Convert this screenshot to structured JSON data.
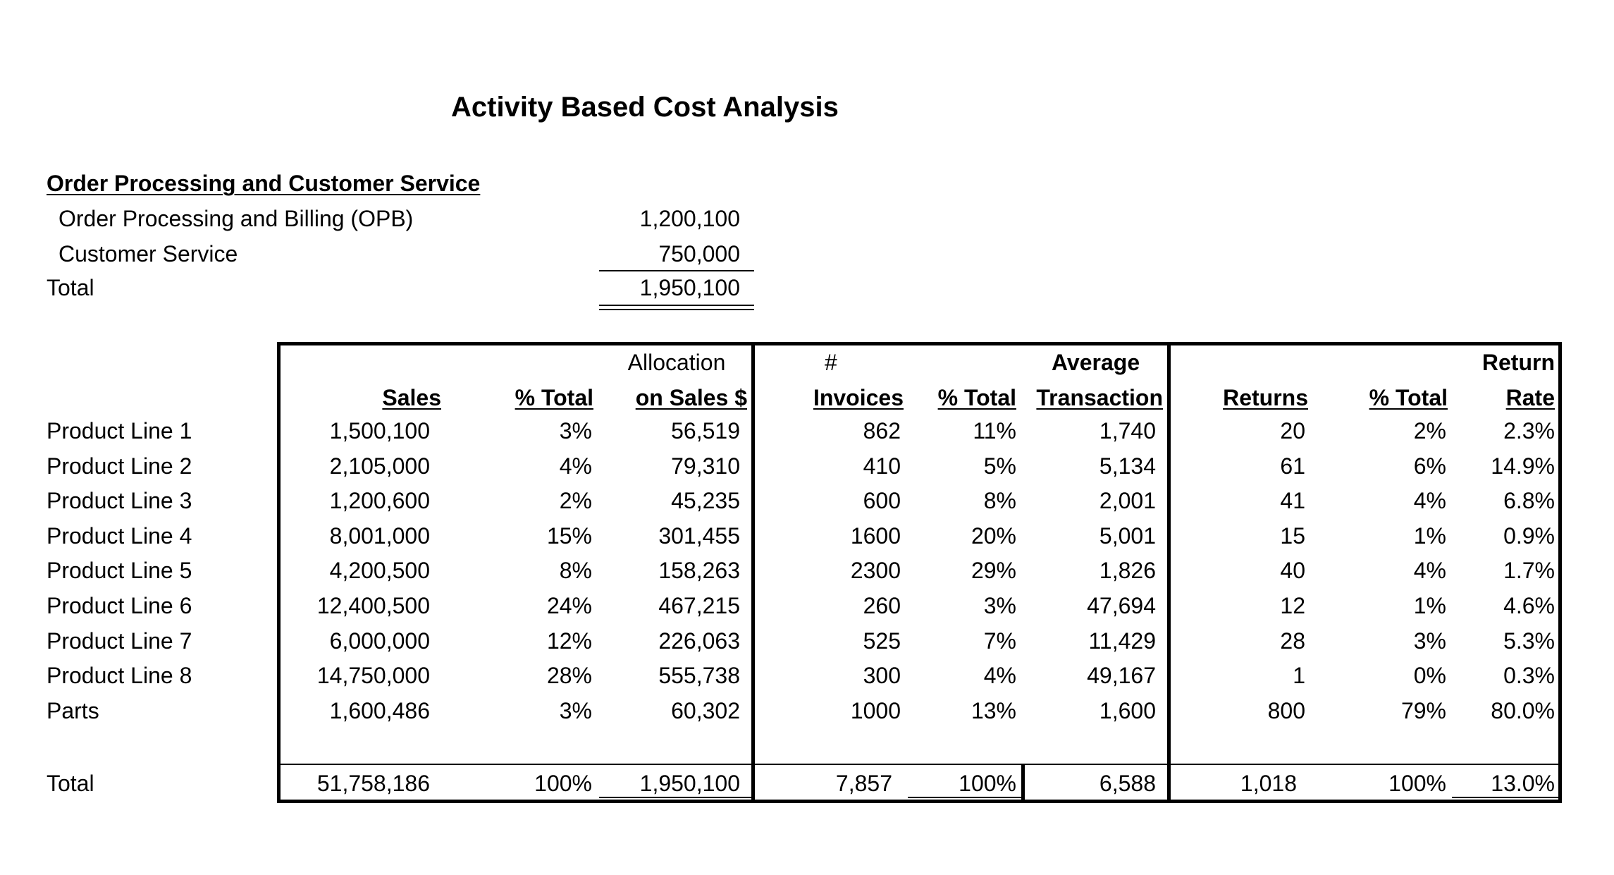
{
  "title": "Activity Based Cost Analysis",
  "section": {
    "heading": "Order Processing and Customer Service",
    "rows": [
      {
        "label": "Order Processing and Billing (OPB)",
        "value": "1,200,100"
      },
      {
        "label": "Customer Service",
        "value": "750,000"
      }
    ],
    "total_label": "Total",
    "total_value": "1,950,100"
  },
  "table": {
    "headers": {
      "sales": "Sales",
      "pct_total_1": "% Total",
      "allocation_top": "Allocation",
      "allocation_bottom": "on Sales $",
      "invoices_top": "#",
      "invoices_bottom": "Invoices",
      "pct_total_2": "% Total",
      "average_top": "Average",
      "average_bottom": "Transaction",
      "returns": "Returns",
      "pct_total_3": "% Total",
      "return_top": "Return",
      "return_bottom": "Rate"
    },
    "rows": [
      {
        "label": "Product Line 1",
        "sales": "1,500,100",
        "pct1": "3%",
        "alloc": "56,519",
        "invoices": "862",
        "pct2": "11%",
        "avg": "1,740",
        "returns": "20",
        "pct3": "2%",
        "rate": "2.3%"
      },
      {
        "label": "Product Line 2",
        "sales": "2,105,000",
        "pct1": "4%",
        "alloc": "79,310",
        "invoices": "410",
        "pct2": "5%",
        "avg": "5,134",
        "returns": "61",
        "pct3": "6%",
        "rate": "14.9%"
      },
      {
        "label": "Product Line 3",
        "sales": "1,200,600",
        "pct1": "2%",
        "alloc": "45,235",
        "invoices": "600",
        "pct2": "8%",
        "avg": "2,001",
        "returns": "41",
        "pct3": "4%",
        "rate": "6.8%"
      },
      {
        "label": "Product Line 4",
        "sales": "8,001,000",
        "pct1": "15%",
        "alloc": "301,455",
        "invoices": "1600",
        "pct2": "20%",
        "avg": "5,001",
        "returns": "15",
        "pct3": "1%",
        "rate": "0.9%"
      },
      {
        "label": "Product Line 5",
        "sales": "4,200,500",
        "pct1": "8%",
        "alloc": "158,263",
        "invoices": "2300",
        "pct2": "29%",
        "avg": "1,826",
        "returns": "40",
        "pct3": "4%",
        "rate": "1.7%"
      },
      {
        "label": "Product Line 6",
        "sales": "12,400,500",
        "pct1": "24%",
        "alloc": "467,215",
        "invoices": "260",
        "pct2": "3%",
        "avg": "47,694",
        "returns": "12",
        "pct3": "1%",
        "rate": "4.6%"
      },
      {
        "label": "Product Line 7",
        "sales": "6,000,000",
        "pct1": "12%",
        "alloc": "226,063",
        "invoices": "525",
        "pct2": "7%",
        "avg": "11,429",
        "returns": "28",
        "pct3": "3%",
        "rate": "5.3%"
      },
      {
        "label": "Product Line 8",
        "sales": "14,750,000",
        "pct1": "28%",
        "alloc": "555,738",
        "invoices": "300",
        "pct2": "4%",
        "avg": "49,167",
        "returns": "1",
        "pct3": "0%",
        "rate": "0.3%"
      },
      {
        "label": "Parts",
        "sales": "1,600,486",
        "pct1": "3%",
        "alloc": "60,302",
        "invoices": "1000",
        "pct2": "13%",
        "avg": "1,600",
        "returns": "800",
        "pct3": "79%",
        "rate": "80.0%"
      }
    ],
    "total": {
      "label": "Total",
      "sales": "51,758,186",
      "pct1": "100%",
      "alloc": "1,950,100",
      "invoices": "7,857",
      "pct2": "100%",
      "avg": "6,588",
      "returns": "1,018",
      "pct3": "100%",
      "rate": "13.0%"
    }
  }
}
